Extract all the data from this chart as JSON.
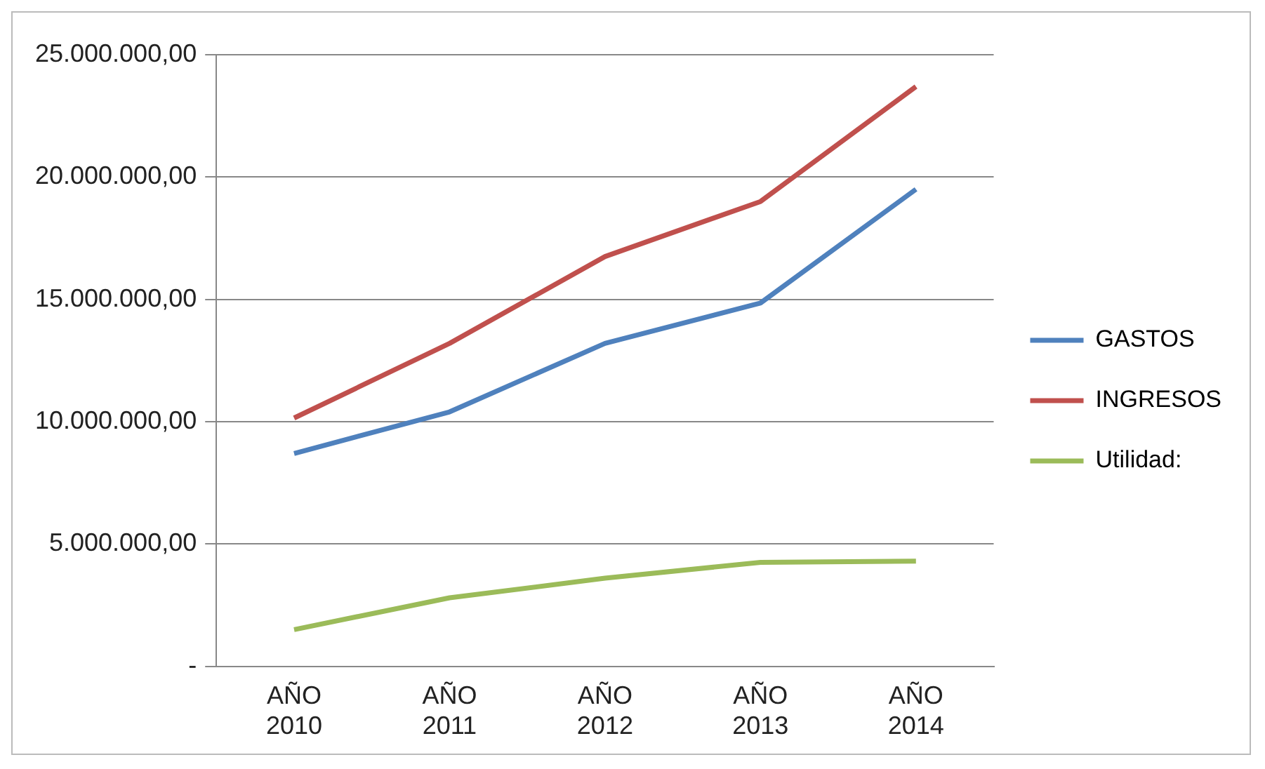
{
  "chart_data": {
    "type": "line",
    "categories": [
      "AÑO 2010",
      "AÑO 2011",
      "AÑO 2012",
      "AÑO 2013",
      "AÑO 2014"
    ],
    "series": [
      {
        "name": "GASTOS",
        "color": "#4f81bd",
        "values": [
          8700000,
          10400000,
          13200000,
          14850000,
          19500000
        ]
      },
      {
        "name": "INGRESOS",
        "color": "#c0504d",
        "values": [
          10150000,
          13200000,
          16750000,
          19000000,
          23700000
        ]
      },
      {
        "name": "Utilidad:",
        "color": "#9bbb59",
        "values": [
          1500000,
          2800000,
          3600000,
          4250000,
          4300000
        ]
      }
    ],
    "ylim": [
      0,
      25000000
    ],
    "yticks": [
      {
        "value": 0,
        "label": "-"
      },
      {
        "value": 5000000,
        "label": "5.000.000,00"
      },
      {
        "value": 10000000,
        "label": "10.000.000,00"
      },
      {
        "value": 15000000,
        "label": "15.000.000,00"
      },
      {
        "value": 20000000,
        "label": "20.000.000,00"
      },
      {
        "value": 25000000,
        "label": "25.000.000,00"
      }
    ],
    "grid": "y",
    "legend": "right",
    "marker": "none",
    "line_style": "solid"
  }
}
